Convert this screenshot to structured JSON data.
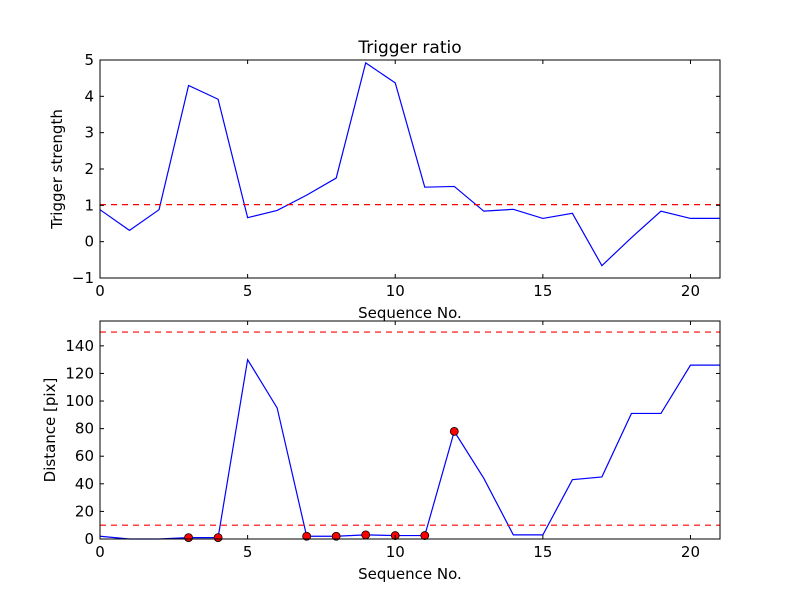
{
  "colors": {
    "line": "#0000ff",
    "threshold": "#ff0000",
    "marker": "#ff0000",
    "background": "#ffffff"
  },
  "chart_data": [
    {
      "type": "line",
      "title": "Trigger ratio",
      "xlabel": "Sequence No.",
      "ylabel": "Trigger strength",
      "xlim": [
        0,
        21
      ],
      "ylim": [
        -1,
        5
      ],
      "xticks": [
        0,
        5,
        10,
        15,
        20
      ],
      "yticks": [
        -1,
        0,
        1,
        2,
        3,
        4,
        5
      ],
      "grid": false,
      "series": [
        {
          "style": "solid",
          "x": [
            0,
            1,
            2,
            3,
            4,
            5,
            6,
            7,
            8,
            9,
            10,
            11,
            12,
            13,
            14,
            15,
            16,
            17,
            18,
            19,
            20,
            21
          ],
          "y": [
            0.88,
            0.31,
            0.88,
            4.3,
            3.92,
            0.66,
            0.86,
            1.28,
            1.75,
            4.92,
            4.37,
            1.5,
            1.52,
            0.84,
            0.89,
            0.64,
            0.78,
            -0.66,
            0.11,
            0.84,
            0.64,
            0.64
          ]
        }
      ],
      "thresholds": [
        1.02
      ]
    },
    {
      "type": "line",
      "title": "",
      "xlabel": "Sequence No.",
      "ylabel": "Distance [pix]",
      "xlim": [
        0,
        21
      ],
      "ylim": [
        0,
        158
      ],
      "xticks": [
        0,
        5,
        10,
        15,
        20
      ],
      "yticks": [
        0,
        20,
        40,
        60,
        80,
        100,
        120,
        140
      ],
      "grid": false,
      "series": [
        {
          "style": "solid",
          "x": [
            0,
            1,
            2,
            3,
            4,
            5,
            6,
            7,
            8,
            9,
            10,
            11,
            12,
            13,
            14,
            15,
            16,
            17,
            18,
            19,
            20,
            21
          ],
          "y": [
            2,
            0,
            0,
            1,
            1,
            130,
            95,
            2,
            2,
            3,
            2.5,
            2.5,
            78,
            44,
            3,
            3,
            43,
            45,
            91,
            91,
            126,
            126
          ]
        }
      ],
      "markers": {
        "x": [
          3,
          4,
          7,
          8,
          9,
          10,
          11,
          12
        ],
        "y": [
          1,
          1,
          2,
          2,
          3,
          2.5,
          2.5,
          78
        ]
      },
      "thresholds": [
        10,
        150
      ]
    }
  ]
}
